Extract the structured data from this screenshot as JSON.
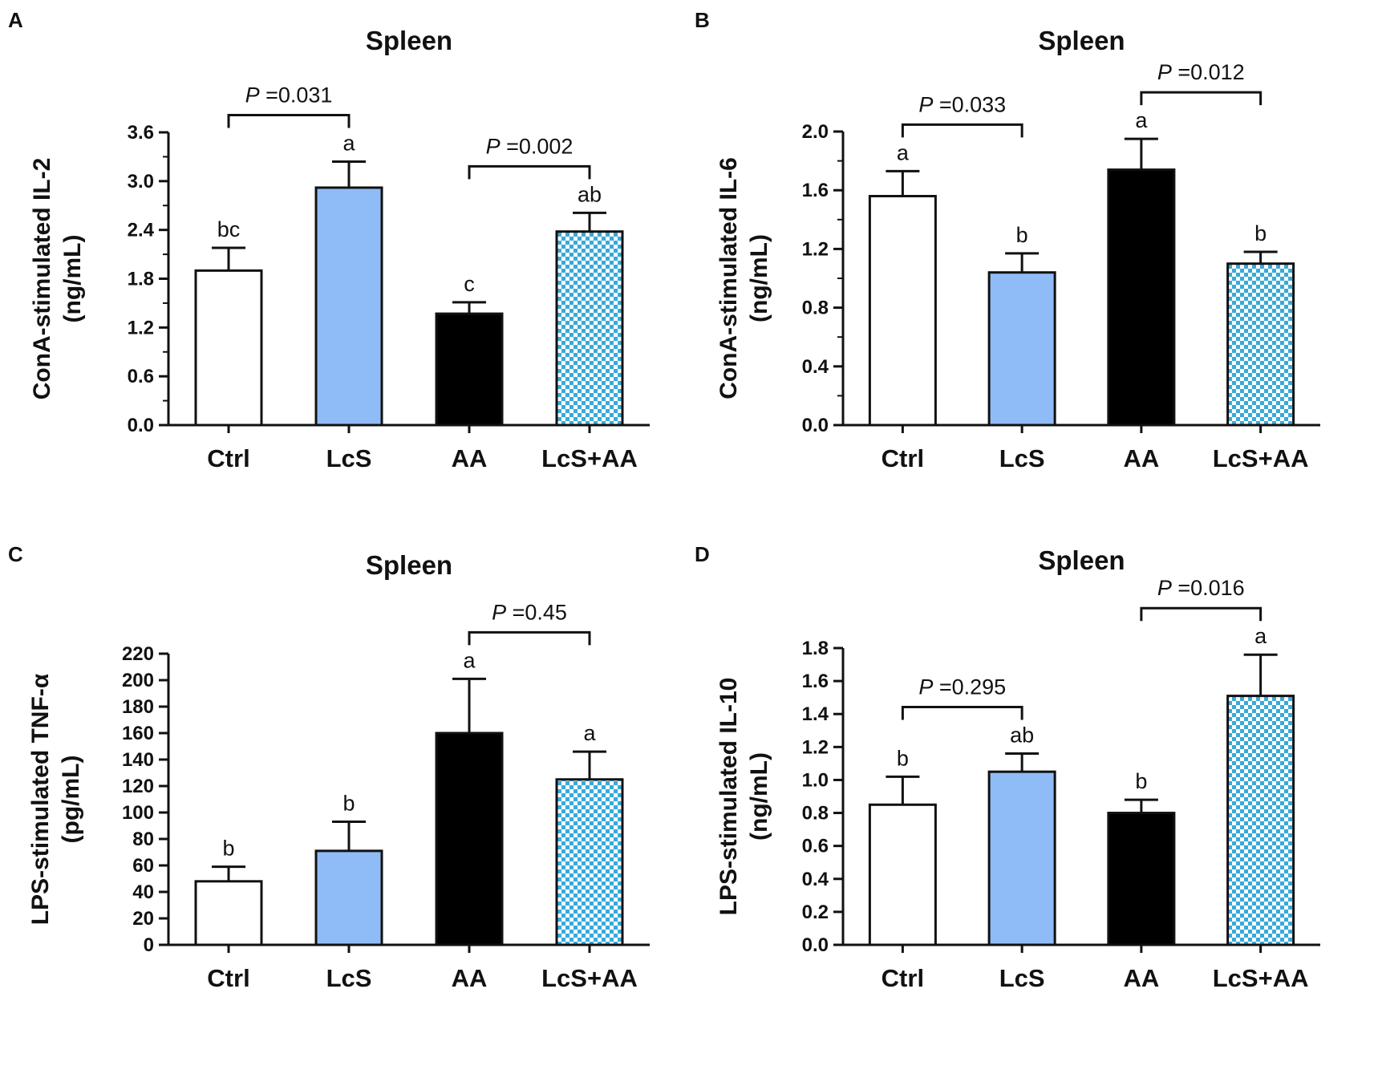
{
  "figure": {
    "bar_colors": [
      "#ffffff",
      "#8fbcf7",
      "#000000",
      "#39a9d8"
    ],
    "checker_color_light": "#ffffff",
    "edge_color": "#111111"
  },
  "chart_data": [
    {
      "panel": "A",
      "type": "bar",
      "title": "Spleen",
      "ylabel_line1": "ConA-stimulated IL-2",
      "ylabel_line2": "(ng/mL)",
      "categories": [
        "Ctrl",
        "LcS",
        "AA",
        "LcS+AA"
      ],
      "values": [
        1.9,
        2.92,
        1.37,
        2.38
      ],
      "errors": [
        0.28,
        0.32,
        0.14,
        0.23
      ],
      "significance": [
        "bc",
        "a",
        "c",
        "ab"
      ],
      "ylim": [
        0,
        3.6
      ],
      "yticks": [
        0.0,
        0.6,
        1.2,
        1.8,
        2.4,
        3.0,
        3.6
      ],
      "ytick_labels": [
        "0.0",
        "0.6",
        "1.2",
        "1.8",
        "2.4",
        "3.0",
        "3.6"
      ],
      "comparisons": [
        {
          "from": 0,
          "to": 1,
          "p_prefix": "P",
          "p_text": " =0.031"
        },
        {
          "from": 2,
          "to": 3,
          "p_prefix": "P",
          "p_text": " =0.002"
        }
      ]
    },
    {
      "panel": "B",
      "type": "bar",
      "title": "Spleen",
      "ylabel_line1": "ConA-stimulated IL-6",
      "ylabel_line2": "(ng/mL)",
      "categories": [
        "Ctrl",
        "LcS",
        "AA",
        "LcS+AA"
      ],
      "values": [
        1.56,
        1.04,
        1.74,
        1.1
      ],
      "errors": [
        0.17,
        0.13,
        0.21,
        0.08
      ],
      "significance": [
        "a",
        "b",
        "a",
        "b"
      ],
      "ylim": [
        0,
        2.0
      ],
      "yticks": [
        0.0,
        0.4,
        0.8,
        1.2,
        1.6,
        2.0
      ],
      "ytick_labels": [
        "0.0",
        "0.4",
        "0.8",
        "1.2",
        "1.6",
        "2.0"
      ],
      "comparisons": [
        {
          "from": 0,
          "to": 1,
          "p_prefix": "P",
          "p_text": " =0.033"
        },
        {
          "from": 2,
          "to": 3,
          "p_prefix": "P",
          "p_text": " =0.012"
        }
      ]
    },
    {
      "panel": "C",
      "type": "bar",
      "title": "Spleen",
      "ylabel_line1": "LPS-stimulated TNF-α",
      "ylabel_line2": "(pg/mL)",
      "categories": [
        "Ctrl",
        "LcS",
        "AA",
        "LcS+AA"
      ],
      "values": [
        48,
        71,
        160,
        125
      ],
      "errors": [
        11,
        22,
        41,
        21
      ],
      "significance": [
        "b",
        "b",
        "a",
        "a"
      ],
      "ylim": [
        0,
        220
      ],
      "yticks": [
        0,
        20,
        40,
        60,
        80,
        100,
        120,
        140,
        160,
        180,
        200,
        220
      ],
      "ytick_labels": [
        "0",
        "20",
        "40",
        "60",
        "80",
        "100",
        "120",
        "140",
        "160",
        "180",
        "200",
        "220"
      ],
      "comparisons": [
        {
          "from": 2,
          "to": 3,
          "p_prefix": "P",
          "p_text": " =0.45"
        }
      ]
    },
    {
      "panel": "D",
      "type": "bar",
      "title": "Spleen",
      "ylabel_line1": "LPS-stimulated IL-10",
      "ylabel_line2": "(ng/mL)",
      "categories": [
        "Ctrl",
        "LcS",
        "AA",
        "LcS+AA"
      ],
      "values": [
        0.85,
        1.05,
        0.8,
        1.51
      ],
      "errors": [
        0.17,
        0.11,
        0.08,
        0.25
      ],
      "significance": [
        "b",
        "ab",
        "b",
        "a"
      ],
      "ylim": [
        0,
        1.8
      ],
      "yticks": [
        0.0,
        0.2,
        0.4,
        0.6,
        0.8,
        1.0,
        1.2,
        1.4,
        1.6,
        1.8
      ],
      "ytick_labels": [
        "0.0",
        "0.2",
        "0.4",
        "0.6",
        "0.8",
        "1.0",
        "1.2",
        "1.4",
        "1.6",
        "1.8"
      ],
      "comparisons": [
        {
          "from": 0,
          "to": 1,
          "p_prefix": "P",
          "p_text": " =0.295"
        },
        {
          "from": 2,
          "to": 3,
          "p_prefix": "P",
          "p_text": " =0.016"
        }
      ]
    }
  ]
}
